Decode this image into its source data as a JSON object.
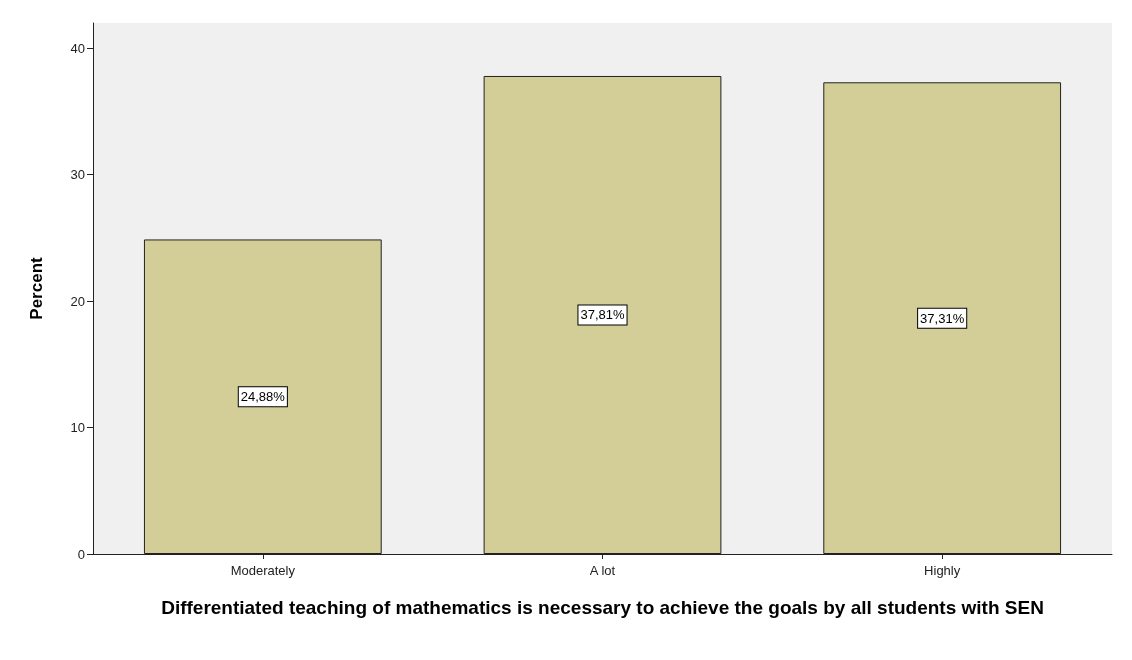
{
  "chart_data": {
    "type": "bar",
    "xlabel": "Differentiated teaching of mathematics is necessary to achieve the goals by all students with SEN",
    "ylabel": "Percent",
    "categories": [
      "Moderately",
      "A lot",
      "Highly"
    ],
    "values": [
      24.88,
      37.81,
      37.31
    ],
    "value_labels": [
      "24,88%",
      "37,81%",
      "37,31%"
    ],
    "color": "#d3ce97",
    "ylim": [
      0,
      42
    ],
    "yticks": [
      0,
      10,
      20,
      30,
      40
    ],
    "grid": false
  }
}
